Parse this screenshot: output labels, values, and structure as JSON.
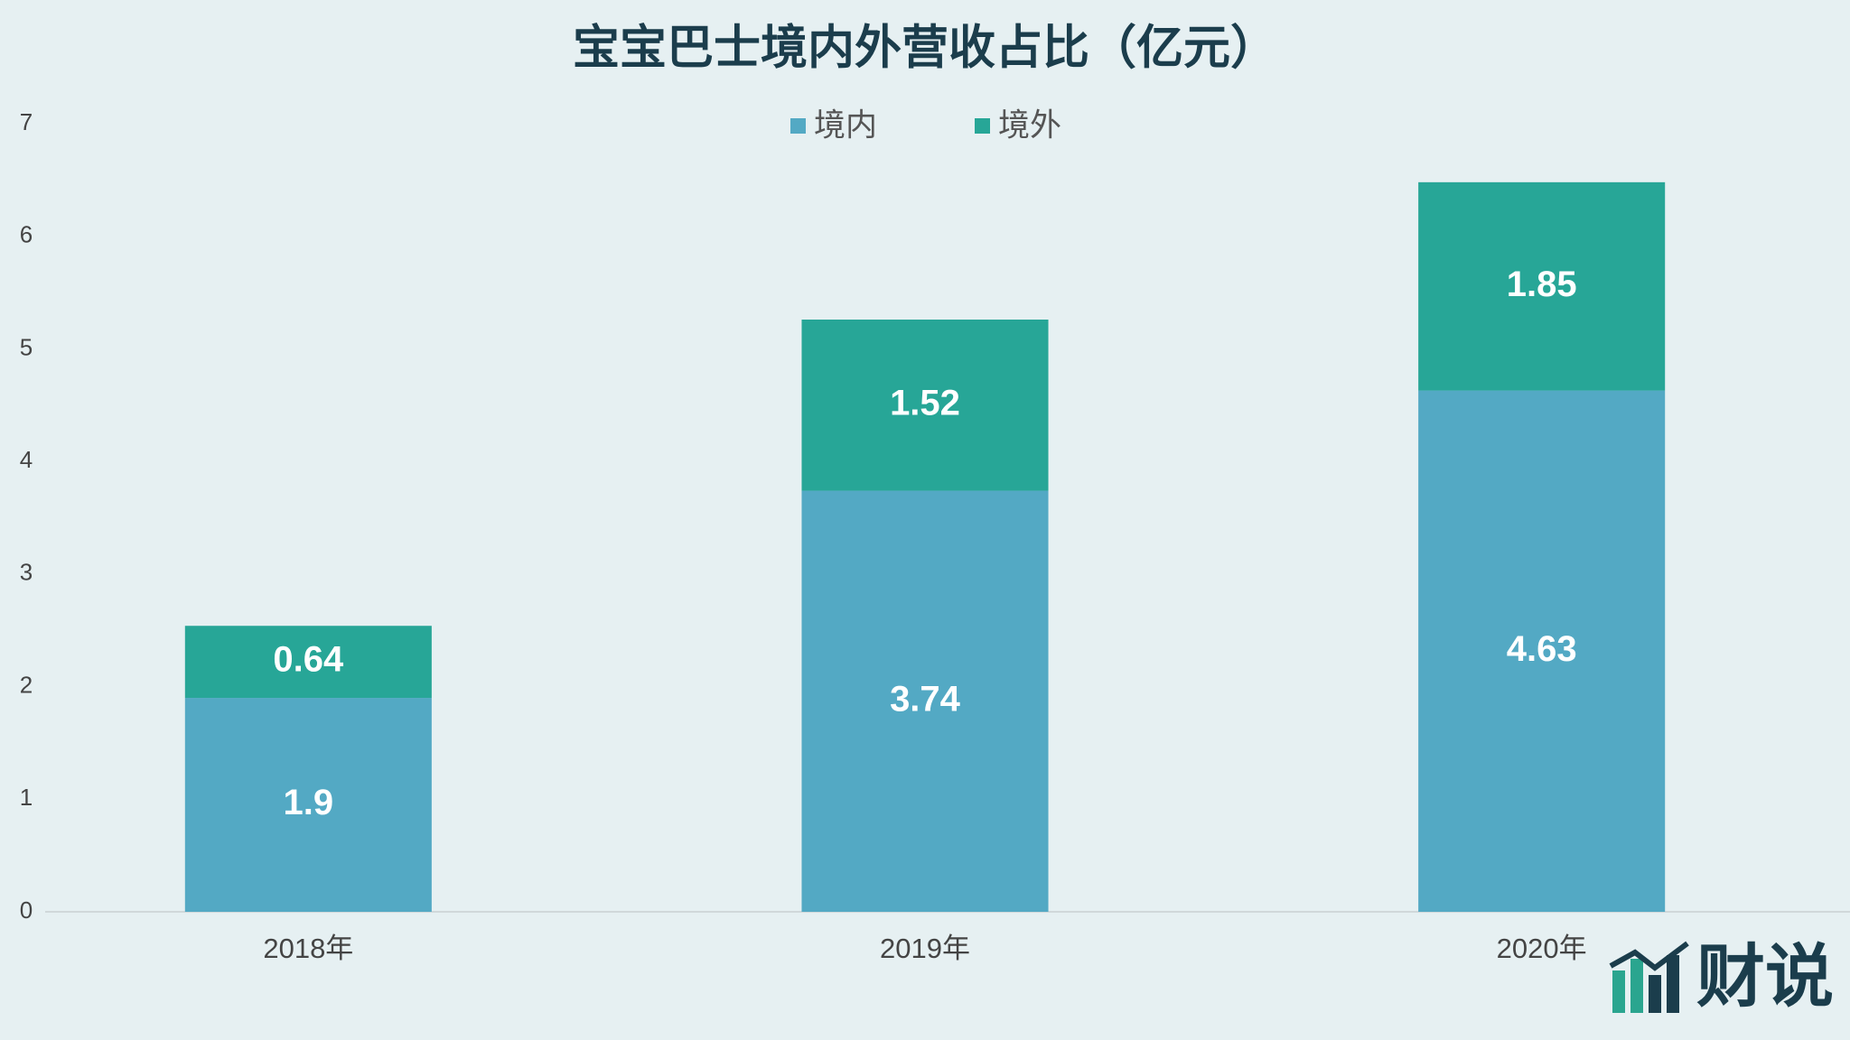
{
  "chart_data": {
    "type": "stacked_bar",
    "title": "宝宝巴士境内外营收占比（亿元）",
    "categories": [
      "2018年",
      "2019年",
      "2020年"
    ],
    "series": [
      {
        "name": "境内",
        "color": "#53a9c4",
        "values": [
          1.9,
          3.74,
          4.63
        ]
      },
      {
        "name": "境外",
        "color": "#27a697",
        "values": [
          0.64,
          1.52,
          1.85
        ]
      }
    ],
    "ylim": [
      0,
      7
    ],
    "yticks": [
      0,
      1,
      2,
      3,
      4,
      5,
      6,
      7
    ],
    "grid": false,
    "legend": "top"
  },
  "logo": "财说"
}
